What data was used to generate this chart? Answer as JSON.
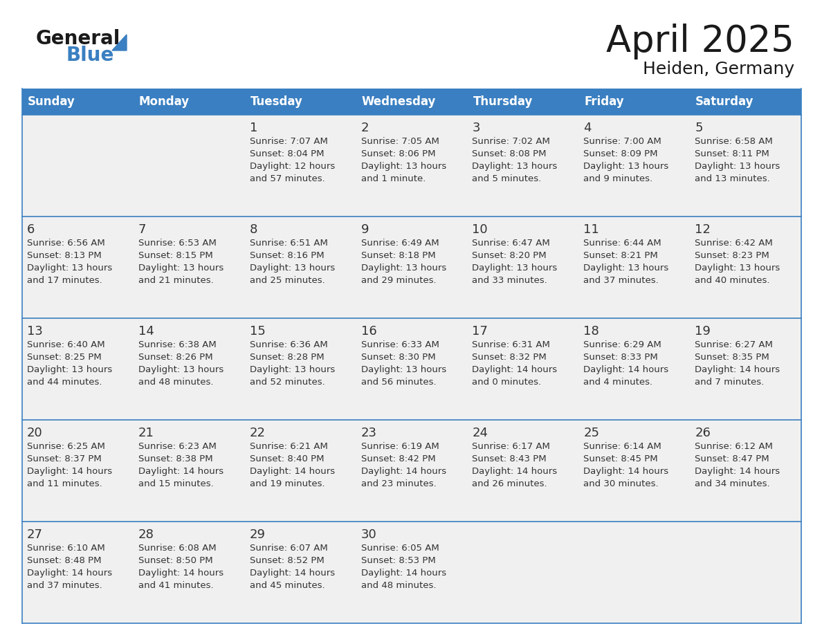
{
  "title": "April 2025",
  "subtitle": "Heiden, Germany",
  "days_of_week": [
    "Sunday",
    "Monday",
    "Tuesday",
    "Wednesday",
    "Thursday",
    "Friday",
    "Saturday"
  ],
  "header_bg": "#3a7fc1",
  "header_text": "#ffffff",
  "row_bg": "#f0f0f0",
  "border_color": "#3a7fc1",
  "text_color": "#333333",
  "calendar_data": [
    [
      {
        "day": "",
        "sunrise": "",
        "sunset": "",
        "daylight": ""
      },
      {
        "day": "",
        "sunrise": "",
        "sunset": "",
        "daylight": ""
      },
      {
        "day": "1",
        "sunrise": "Sunrise: 7:07 AM",
        "sunset": "Sunset: 8:04 PM",
        "daylight": "Daylight: 12 hours\nand 57 minutes."
      },
      {
        "day": "2",
        "sunrise": "Sunrise: 7:05 AM",
        "sunset": "Sunset: 8:06 PM",
        "daylight": "Daylight: 13 hours\nand 1 minute."
      },
      {
        "day": "3",
        "sunrise": "Sunrise: 7:02 AM",
        "sunset": "Sunset: 8:08 PM",
        "daylight": "Daylight: 13 hours\nand 5 minutes."
      },
      {
        "day": "4",
        "sunrise": "Sunrise: 7:00 AM",
        "sunset": "Sunset: 8:09 PM",
        "daylight": "Daylight: 13 hours\nand 9 minutes."
      },
      {
        "day": "5",
        "sunrise": "Sunrise: 6:58 AM",
        "sunset": "Sunset: 8:11 PM",
        "daylight": "Daylight: 13 hours\nand 13 minutes."
      }
    ],
    [
      {
        "day": "6",
        "sunrise": "Sunrise: 6:56 AM",
        "sunset": "Sunset: 8:13 PM",
        "daylight": "Daylight: 13 hours\nand 17 minutes."
      },
      {
        "day": "7",
        "sunrise": "Sunrise: 6:53 AM",
        "sunset": "Sunset: 8:15 PM",
        "daylight": "Daylight: 13 hours\nand 21 minutes."
      },
      {
        "day": "8",
        "sunrise": "Sunrise: 6:51 AM",
        "sunset": "Sunset: 8:16 PM",
        "daylight": "Daylight: 13 hours\nand 25 minutes."
      },
      {
        "day": "9",
        "sunrise": "Sunrise: 6:49 AM",
        "sunset": "Sunset: 8:18 PM",
        "daylight": "Daylight: 13 hours\nand 29 minutes."
      },
      {
        "day": "10",
        "sunrise": "Sunrise: 6:47 AM",
        "sunset": "Sunset: 8:20 PM",
        "daylight": "Daylight: 13 hours\nand 33 minutes."
      },
      {
        "day": "11",
        "sunrise": "Sunrise: 6:44 AM",
        "sunset": "Sunset: 8:21 PM",
        "daylight": "Daylight: 13 hours\nand 37 minutes."
      },
      {
        "day": "12",
        "sunrise": "Sunrise: 6:42 AM",
        "sunset": "Sunset: 8:23 PM",
        "daylight": "Daylight: 13 hours\nand 40 minutes."
      }
    ],
    [
      {
        "day": "13",
        "sunrise": "Sunrise: 6:40 AM",
        "sunset": "Sunset: 8:25 PM",
        "daylight": "Daylight: 13 hours\nand 44 minutes."
      },
      {
        "day": "14",
        "sunrise": "Sunrise: 6:38 AM",
        "sunset": "Sunset: 8:26 PM",
        "daylight": "Daylight: 13 hours\nand 48 minutes."
      },
      {
        "day": "15",
        "sunrise": "Sunrise: 6:36 AM",
        "sunset": "Sunset: 8:28 PM",
        "daylight": "Daylight: 13 hours\nand 52 minutes."
      },
      {
        "day": "16",
        "sunrise": "Sunrise: 6:33 AM",
        "sunset": "Sunset: 8:30 PM",
        "daylight": "Daylight: 13 hours\nand 56 minutes."
      },
      {
        "day": "17",
        "sunrise": "Sunrise: 6:31 AM",
        "sunset": "Sunset: 8:32 PM",
        "daylight": "Daylight: 14 hours\nand 0 minutes."
      },
      {
        "day": "18",
        "sunrise": "Sunrise: 6:29 AM",
        "sunset": "Sunset: 8:33 PM",
        "daylight": "Daylight: 14 hours\nand 4 minutes."
      },
      {
        "day": "19",
        "sunrise": "Sunrise: 6:27 AM",
        "sunset": "Sunset: 8:35 PM",
        "daylight": "Daylight: 14 hours\nand 7 minutes."
      }
    ],
    [
      {
        "day": "20",
        "sunrise": "Sunrise: 6:25 AM",
        "sunset": "Sunset: 8:37 PM",
        "daylight": "Daylight: 14 hours\nand 11 minutes."
      },
      {
        "day": "21",
        "sunrise": "Sunrise: 6:23 AM",
        "sunset": "Sunset: 8:38 PM",
        "daylight": "Daylight: 14 hours\nand 15 minutes."
      },
      {
        "day": "22",
        "sunrise": "Sunrise: 6:21 AM",
        "sunset": "Sunset: 8:40 PM",
        "daylight": "Daylight: 14 hours\nand 19 minutes."
      },
      {
        "day": "23",
        "sunrise": "Sunrise: 6:19 AM",
        "sunset": "Sunset: 8:42 PM",
        "daylight": "Daylight: 14 hours\nand 23 minutes."
      },
      {
        "day": "24",
        "sunrise": "Sunrise: 6:17 AM",
        "sunset": "Sunset: 8:43 PM",
        "daylight": "Daylight: 14 hours\nand 26 minutes."
      },
      {
        "day": "25",
        "sunrise": "Sunrise: 6:14 AM",
        "sunset": "Sunset: 8:45 PM",
        "daylight": "Daylight: 14 hours\nand 30 minutes."
      },
      {
        "day": "26",
        "sunrise": "Sunrise: 6:12 AM",
        "sunset": "Sunset: 8:47 PM",
        "daylight": "Daylight: 14 hours\nand 34 minutes."
      }
    ],
    [
      {
        "day": "27",
        "sunrise": "Sunrise: 6:10 AM",
        "sunset": "Sunset: 8:48 PM",
        "daylight": "Daylight: 14 hours\nand 37 minutes."
      },
      {
        "day": "28",
        "sunrise": "Sunrise: 6:08 AM",
        "sunset": "Sunset: 8:50 PM",
        "daylight": "Daylight: 14 hours\nand 41 minutes."
      },
      {
        "day": "29",
        "sunrise": "Sunrise: 6:07 AM",
        "sunset": "Sunset: 8:52 PM",
        "daylight": "Daylight: 14 hours\nand 45 minutes."
      },
      {
        "day": "30",
        "sunrise": "Sunrise: 6:05 AM",
        "sunset": "Sunset: 8:53 PM",
        "daylight": "Daylight: 14 hours\nand 48 minutes."
      },
      {
        "day": "",
        "sunrise": "",
        "sunset": "",
        "daylight": ""
      },
      {
        "day": "",
        "sunrise": "",
        "sunset": "",
        "daylight": ""
      },
      {
        "day": "",
        "sunrise": "",
        "sunset": "",
        "daylight": ""
      }
    ]
  ],
  "logo_color_general": "#1a1a1a",
  "logo_color_blue": "#3a7fc1",
  "title_fontsize": 38,
  "subtitle_fontsize": 18,
  "header_fontsize": 12,
  "day_num_fontsize": 13,
  "cell_text_fontsize": 9.5
}
